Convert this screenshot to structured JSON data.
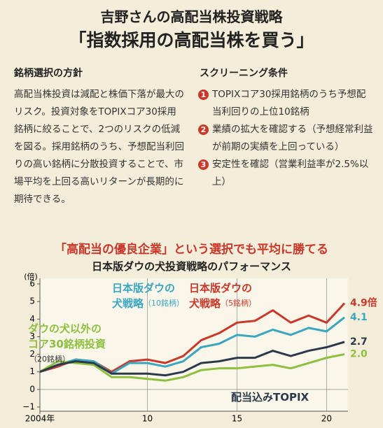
{
  "header": {
    "title": "吉野さんの高配当株投資戦略",
    "subtitle": "「指数採用の高配当株を買う」"
  },
  "left": {
    "heading": "銘柄選択の方針",
    "body": "高配当株投資は減配と株価下落が最大のリスク。投資対象をTOPIXコア30採用銘柄に絞ることで、2つのリスクの低減を図る。採用銘柄のうち、予想配当利回りの高い銘柄に分散投資することで、市場平均を上回る高いリターンが長期的に期待できる。"
  },
  "right": {
    "heading": "スクリーニング条件",
    "items": [
      {
        "num": "1",
        "text": "TOPIXコア30採用銘柄のうち予想配当利回りの上位10銘柄"
      },
      {
        "num": "2",
        "text": "業績の拡大を確認する（予想経常利益が前期の実績を上回っている）"
      },
      {
        "num": "3",
        "text": "安定性を確認（営業利益率が2.5%以上）"
      }
    ]
  },
  "chart_data": {
    "type": "line",
    "headline": "「高配当の優良企業」という選択でも平均に勝てる",
    "title": "日本版ダウの犬投資戦略のパフォーマンス",
    "y_unit": "(倍)",
    "x": [
      2004,
      2005,
      2006,
      2007,
      2008,
      2009,
      2010,
      2011,
      2012,
      2013,
      2014,
      2015,
      2016,
      2017,
      2018,
      2019,
      2020,
      2021
    ],
    "xlim": [
      2004,
      2021
    ],
    "xticks": [
      {
        "value": 2004,
        "label": "2004年"
      },
      {
        "value": 2010,
        "label": "10"
      },
      {
        "value": 2015,
        "label": "15"
      },
      {
        "value": 2020,
        "label": "20"
      }
    ],
    "ylim": [
      -1,
      6
    ],
    "yticks": [
      {
        "value": -1,
        "label": "−1"
      },
      0,
      1,
      2,
      3,
      4,
      5,
      6
    ],
    "series": [
      {
        "name_lines": [
          "日本版ダウの",
          "犬戦略"
        ],
        "name_note": "（5銘柄）",
        "color": "#c9382a",
        "values": [
          1.0,
          1.3,
          1.7,
          1.6,
          1.0,
          1.6,
          1.7,
          1.5,
          1.9,
          2.8,
          3.2,
          3.8,
          3.9,
          4.5,
          3.8,
          4.2,
          3.8,
          4.9
        ],
        "value_labels": [
          null,
          null,
          null,
          null,
          null,
          null,
          null,
          null,
          null,
          null,
          null,
          null,
          null,
          null,
          null,
          null,
          null,
          "4.9倍"
        ]
      },
      {
        "name_lines": [
          "日本版ダウの",
          "犬戦略"
        ],
        "name_note": "（10銘柄）",
        "color": "#3aa6bf",
        "values": [
          1.0,
          1.4,
          1.7,
          1.6,
          0.9,
          1.5,
          1.5,
          1.3,
          1.6,
          2.4,
          2.6,
          3.1,
          3.0,
          3.4,
          3.1,
          3.5,
          3.3,
          4.1
        ],
        "value_labels": [
          null,
          null,
          null,
          null,
          null,
          null,
          null,
          null,
          null,
          null,
          null,
          null,
          null,
          null,
          null,
          null,
          null,
          "4.1"
        ]
      },
      {
        "name_lines": [
          "ダウの犬以外の",
          "コア30銘柄投資"
        ],
        "name_note": "（20銘柄）",
        "color": "#8dc03f",
        "values": [
          1.0,
          1.6,
          1.5,
          1.4,
          0.7,
          0.7,
          0.6,
          0.5,
          0.7,
          1.1,
          1.2,
          1.2,
          1.3,
          1.4,
          1.2,
          1.5,
          1.8,
          2.0
        ],
        "value_labels": [
          null,
          null,
          null,
          null,
          null,
          null,
          null,
          null,
          null,
          null,
          null,
          null,
          null,
          null,
          null,
          null,
          null,
          "2.0"
        ]
      },
      {
        "name_lines": [
          "配当込みTOPIX"
        ],
        "color": "#2b3a4a",
        "values": [
          1.0,
          1.4,
          1.6,
          1.5,
          0.9,
          0.9,
          0.9,
          0.8,
          1.0,
          1.5,
          1.6,
          1.8,
          1.8,
          2.2,
          1.9,
          2.2,
          2.4,
          2.7
        ],
        "value_labels": [
          null,
          null,
          null,
          null,
          null,
          null,
          null,
          null,
          null,
          null,
          null,
          null,
          null,
          null,
          null,
          null,
          null,
          "2.7"
        ]
      }
    ]
  }
}
